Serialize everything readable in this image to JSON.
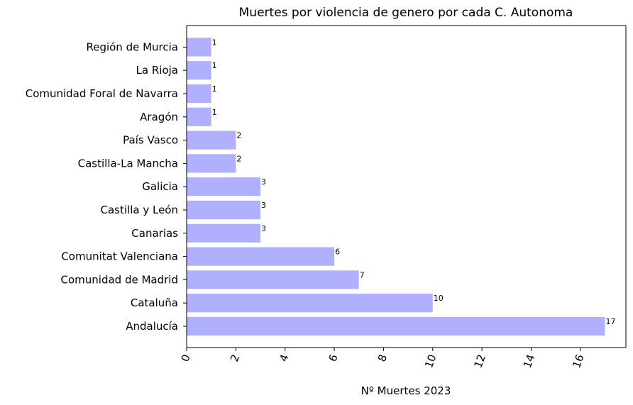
{
  "chart_data": {
    "type": "bar",
    "orientation": "horizontal",
    "title": "Muertes por violencia de genero por cada C. Autonoma",
    "xlabel": "Nº Muertes 2023",
    "ylabel": "",
    "categories": [
      "Andalucía",
      "Cataluña",
      "Comunidad de Madrid",
      "Comunitat Valenciana",
      "Canarias",
      "Castilla y León",
      "Galicia",
      "Castilla-La Mancha",
      "País Vasco",
      "Aragón",
      "Comunidad Foral de Navarra",
      "La Rioja",
      "Región de Murcia"
    ],
    "values": [
      17,
      10,
      7,
      6,
      3,
      3,
      3,
      2,
      2,
      1,
      1,
      1,
      1
    ],
    "value_labels": [
      "17",
      "10",
      "7",
      "6",
      "3",
      "3",
      "3",
      "2",
      "2",
      "1",
      "1",
      "1",
      "1"
    ],
    "xticks": [
      "0",
      "2",
      "4",
      "6",
      "8",
      "10",
      "12",
      "14",
      "16"
    ],
    "xtick_values": [
      0,
      2,
      4,
      6,
      8,
      10,
      12,
      14,
      16
    ],
    "xtick_rotation": "rotated",
    "xlim": [
      0,
      17.85
    ],
    "bar_color": "#b0b0ff",
    "grid": false,
    "legend": "none"
  }
}
